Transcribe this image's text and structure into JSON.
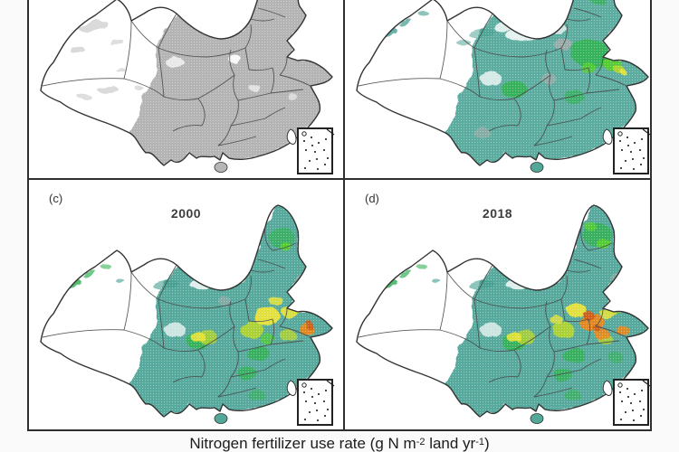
{
  "figure": {
    "caption": {
      "prefix": "Nitrogen fertilizer use rate (g N m",
      "sup1": "-2",
      "mid": " land yr",
      "sup2": "-1",
      "suffix": ")"
    },
    "panels": [
      {
        "id": "a",
        "label": "",
        "year": "",
        "style": "grayscale"
      },
      {
        "id": "b",
        "label": "",
        "year": "",
        "style": "color"
      },
      {
        "id": "c",
        "label": "(c)",
        "year": "2000",
        "style": "color"
      },
      {
        "id": "d",
        "label": "(d)",
        "year": "2018",
        "style": "color"
      }
    ],
    "colors": {
      "teal": "#3f9d8e",
      "green": "#35b257",
      "bright_green": "#55cf2d",
      "yellow_green": "#b5d52c",
      "yellow": "#e9e43a",
      "orange": "#e8881e",
      "red_orange": "#cf5a16",
      "gray_fill": "#aeaeae",
      "gray_speckle": "#d6d6d6",
      "panel_border": "#2f2f2f",
      "country_line": "#333333",
      "province_line": "#4a4a4a",
      "text": "#1c1c1c"
    }
  }
}
